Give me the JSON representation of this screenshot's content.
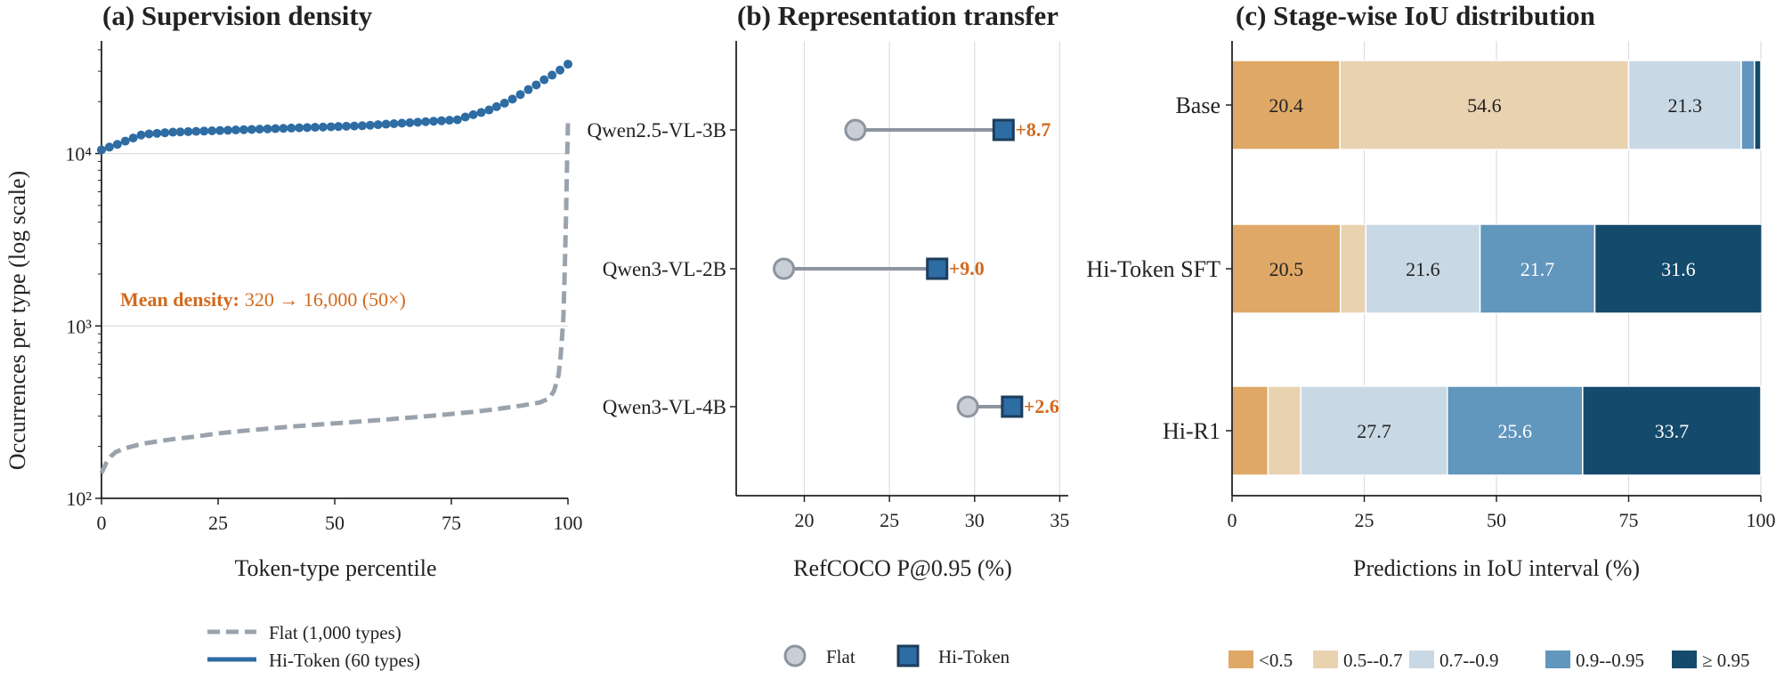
{
  "chart_data": [
    {
      "type": "line",
      "title": "(a) Supervision density",
      "xlabel": "Token-type percentile",
      "ylabel": "Occurrences per type (log scale)",
      "xlim": [
        0,
        100
      ],
      "ylim": [
        100,
        45000
      ],
      "y_scale": "log",
      "xticks": [
        "0",
        "25",
        "50",
        "75",
        "100"
      ],
      "yticks": [
        "10²",
        "10³",
        "10⁴"
      ],
      "grid": "horizontal at decades",
      "legend": "bottom",
      "annotation": {
        "label": "Mean density:",
        "text": "320  →  16,000 (50×)"
      },
      "series": [
        {
          "name": "Flat (1,000 types)",
          "style": "dashed",
          "color": "#9aa3ad",
          "x": [
            0,
            0.5,
            1,
            2,
            3,
            5,
            8,
            10,
            15,
            20,
            25,
            30,
            40,
            50,
            60,
            70,
            80,
            85,
            90,
            94,
            96,
            97,
            98,
            98.5,
            99,
            99.3,
            99.6,
            99.8,
            100
          ],
          "y": [
            140,
            150,
            160,
            175,
            185,
            195,
            205,
            210,
            220,
            228,
            238,
            246,
            260,
            272,
            285,
            300,
            318,
            330,
            345,
            360,
            380,
            420,
            520,
            700,
            1100,
            2000,
            4500,
            9000,
            15000
          ]
        },
        {
          "name": "Hi-Token (60 types)",
          "style": "markers",
          "color": "#2e6ca4",
          "x": [
            0,
            1.7,
            3.4,
            5.1,
            6.8,
            8.5,
            10.2,
            11.9,
            13.6,
            15.3,
            16.9,
            18.6,
            20.3,
            22,
            23.7,
            25.4,
            27.1,
            28.8,
            30.5,
            32.2,
            33.9,
            35.6,
            37.3,
            39,
            40.7,
            42.4,
            44.1,
            45.8,
            47.5,
            49.2,
            50.8,
            52.5,
            54.2,
            55.9,
            57.6,
            59.3,
            61,
            62.7,
            64.4,
            66.1,
            67.8,
            69.5,
            71.2,
            72.9,
            74.6,
            76.3,
            78,
            79.7,
            81.4,
            83.1,
            84.7,
            86.4,
            88.1,
            89.8,
            91.5,
            93.2,
            94.9,
            96.6,
            98.3,
            100
          ],
          "y": [
            10500,
            10900,
            11300,
            11800,
            12300,
            12800,
            13000,
            13100,
            13200,
            13300,
            13350,
            13400,
            13450,
            13500,
            13550,
            13600,
            13650,
            13700,
            13750,
            13800,
            13850,
            13900,
            13950,
            14000,
            14050,
            14100,
            14150,
            14200,
            14250,
            14300,
            14350,
            14400,
            14450,
            14500,
            14600,
            14700,
            14800,
            14900,
            15000,
            15100,
            15200,
            15300,
            15400,
            15500,
            15600,
            15700,
            16300,
            16800,
            17300,
            17900,
            18700,
            19600,
            20700,
            22000,
            23500,
            25000,
            26800,
            28500,
            30500,
            33000
          ]
        }
      ]
    },
    {
      "type": "dumbbell",
      "title": "(b) Representation transfer",
      "xlabel": "RefCOCO P@0.95 (%)",
      "xlim": [
        16,
        35.5
      ],
      "xticks": [
        "20",
        "25",
        "30",
        "35"
      ],
      "grid": "vertical",
      "legend": "bottom",
      "categories": [
        "Qwen2.5-VL-3B",
        "Qwen3-VL-2B",
        "Qwen3-VL-4B"
      ],
      "series": [
        {
          "name": "Flat",
          "color": "#c9cfd6",
          "values": [
            23.0,
            18.8,
            29.6
          ]
        },
        {
          "name": "Hi-Token",
          "color": "#2e6ca4",
          "values": [
            31.7,
            27.8,
            32.2
          ]
        }
      ],
      "deltas": [
        "+8.7",
        "+9.0",
        "+2.6"
      ]
    },
    {
      "type": "bar",
      "orientation": "horizontal-stacked",
      "title": "(c) Stage-wise IoU distribution",
      "xlabel": "Predictions in IoU interval (%)",
      "xlim": [
        0,
        100
      ],
      "xticks": [
        "0",
        "25",
        "50",
        "75",
        "100"
      ],
      "grid": "vertical",
      "legend": "bottom",
      "categories": [
        "Base",
        "Hi-Token SFT",
        "Hi-R1"
      ],
      "series": [
        {
          "name": "<0.5",
          "color": "#dfa866",
          "values": [
            20.4,
            20.5,
            6.8
          ],
          "labels": [
            "20.4",
            "20.5",
            ""
          ]
        },
        {
          "name": "0.5--0.7",
          "color": "#e9d2b0",
          "values": [
            54.6,
            4.8,
            6.2
          ],
          "labels": [
            "54.6",
            "",
            ""
          ]
        },
        {
          "name": "0.7--0.9",
          "color": "#c9d8e5",
          "values": [
            21.3,
            21.6,
            27.7
          ],
          "labels": [
            "21.3",
            "21.6",
            "27.7"
          ]
        },
        {
          "name": "0.9--0.95",
          "color": "#6196bd",
          "values": [
            2.5,
            21.7,
            25.6
          ],
          "labels": [
            "",
            "21.7",
            "25.6"
          ]
        },
        {
          "name": "≥ 0.95",
          "color": "#144a6b",
          "values": [
            1.2,
            31.6,
            33.7
          ],
          "labels": [
            "",
            "31.6",
            "33.7"
          ]
        }
      ]
    }
  ]
}
